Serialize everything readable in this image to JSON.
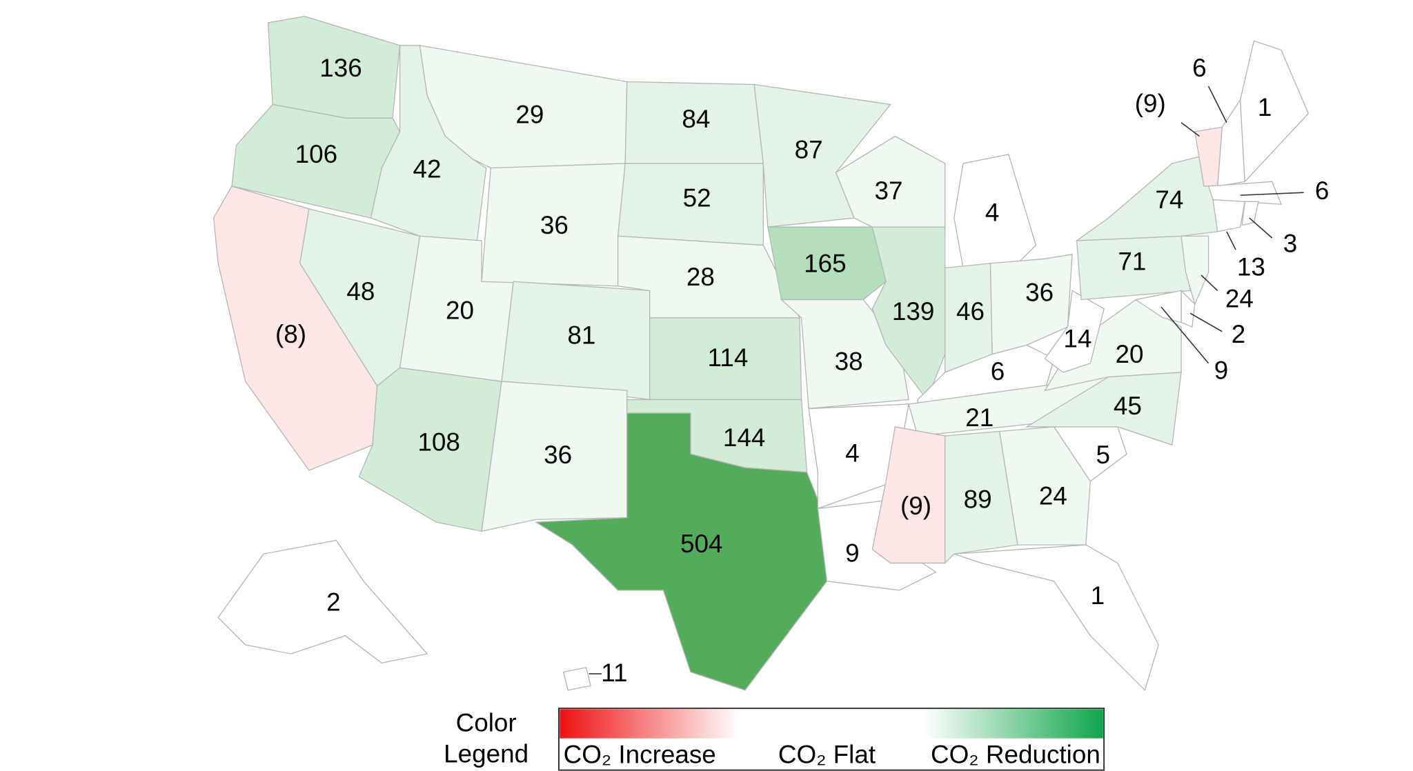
{
  "map": {
    "labels": [
      "136",
      "106",
      "(8)",
      "42",
      "48",
      "20",
      "108",
      "29",
      "36",
      "81",
      "36",
      "84",
      "52",
      "28",
      "114",
      "144",
      "504",
      "87",
      "165",
      "38",
      "4",
      "9",
      "37",
      "139",
      "4",
      "46",
      "36",
      "6",
      "21",
      "(9)",
      "89",
      "24",
      "1",
      "5",
      "45",
      "20",
      "14",
      "71",
      "74",
      "6",
      "(9)",
      "1",
      "6",
      "3",
      "13",
      "24",
      "2",
      "9",
      "2",
      "11"
    ]
  },
  "legend": {
    "title": [
      "Color",
      "Legend"
    ],
    "increase": "CO₂ Increase",
    "flat": "CO₂ Flat",
    "reduction": "CO₂ Reduction"
  }
}
